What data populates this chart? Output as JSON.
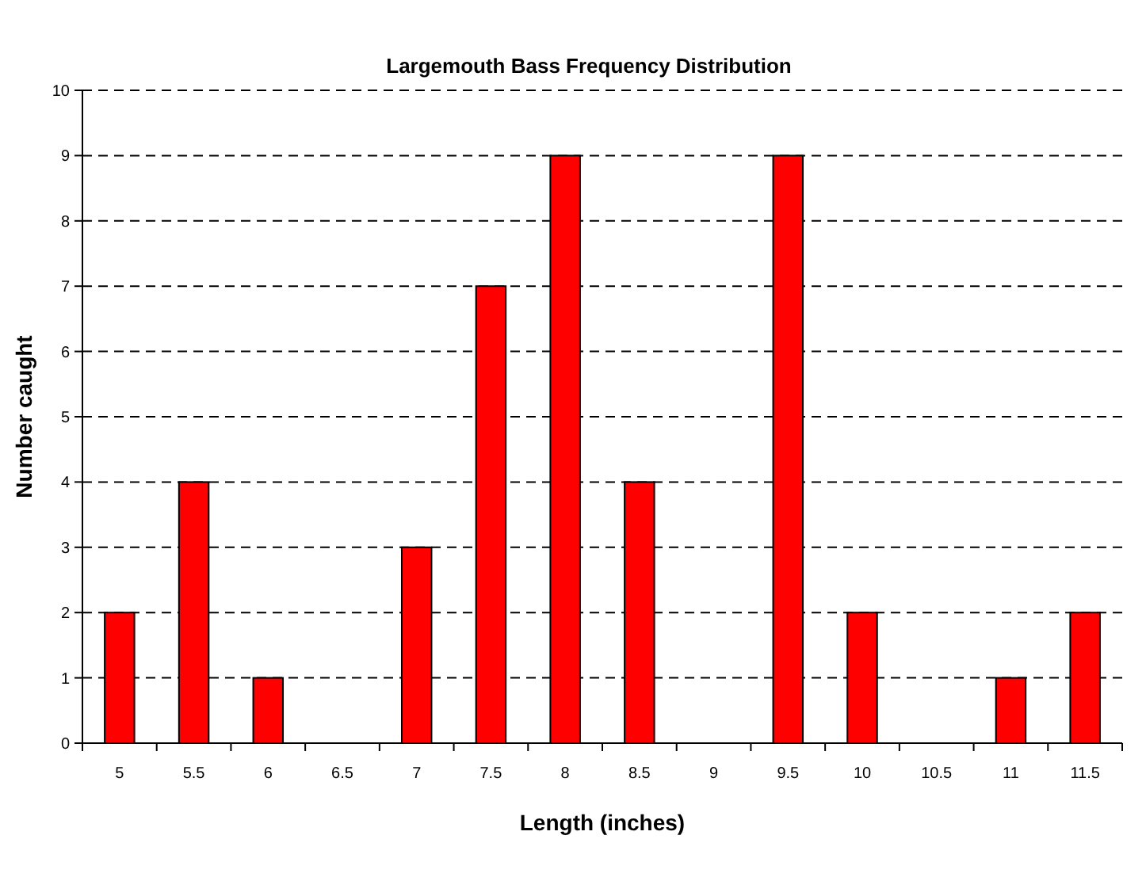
{
  "chart_data": {
    "type": "bar",
    "title": "Largemouth Bass Frequency Distribution",
    "xlabel": "Length (inches)",
    "ylabel": "Number caught",
    "categories": [
      "5",
      "5.5",
      "6",
      "6.5",
      "7",
      "7.5",
      "8",
      "8.5",
      "9",
      "9.5",
      "10",
      "10.5",
      "11",
      "11.5"
    ],
    "values": [
      2,
      4,
      1,
      0,
      3,
      7,
      9,
      4,
      0,
      9,
      2,
      0,
      1,
      2
    ],
    "color": "#ff0000",
    "ylim": [
      0,
      10
    ],
    "yticks": [
      0,
      1,
      2,
      3,
      4,
      5,
      6,
      7,
      8,
      9,
      10
    ],
    "grid": "y"
  }
}
